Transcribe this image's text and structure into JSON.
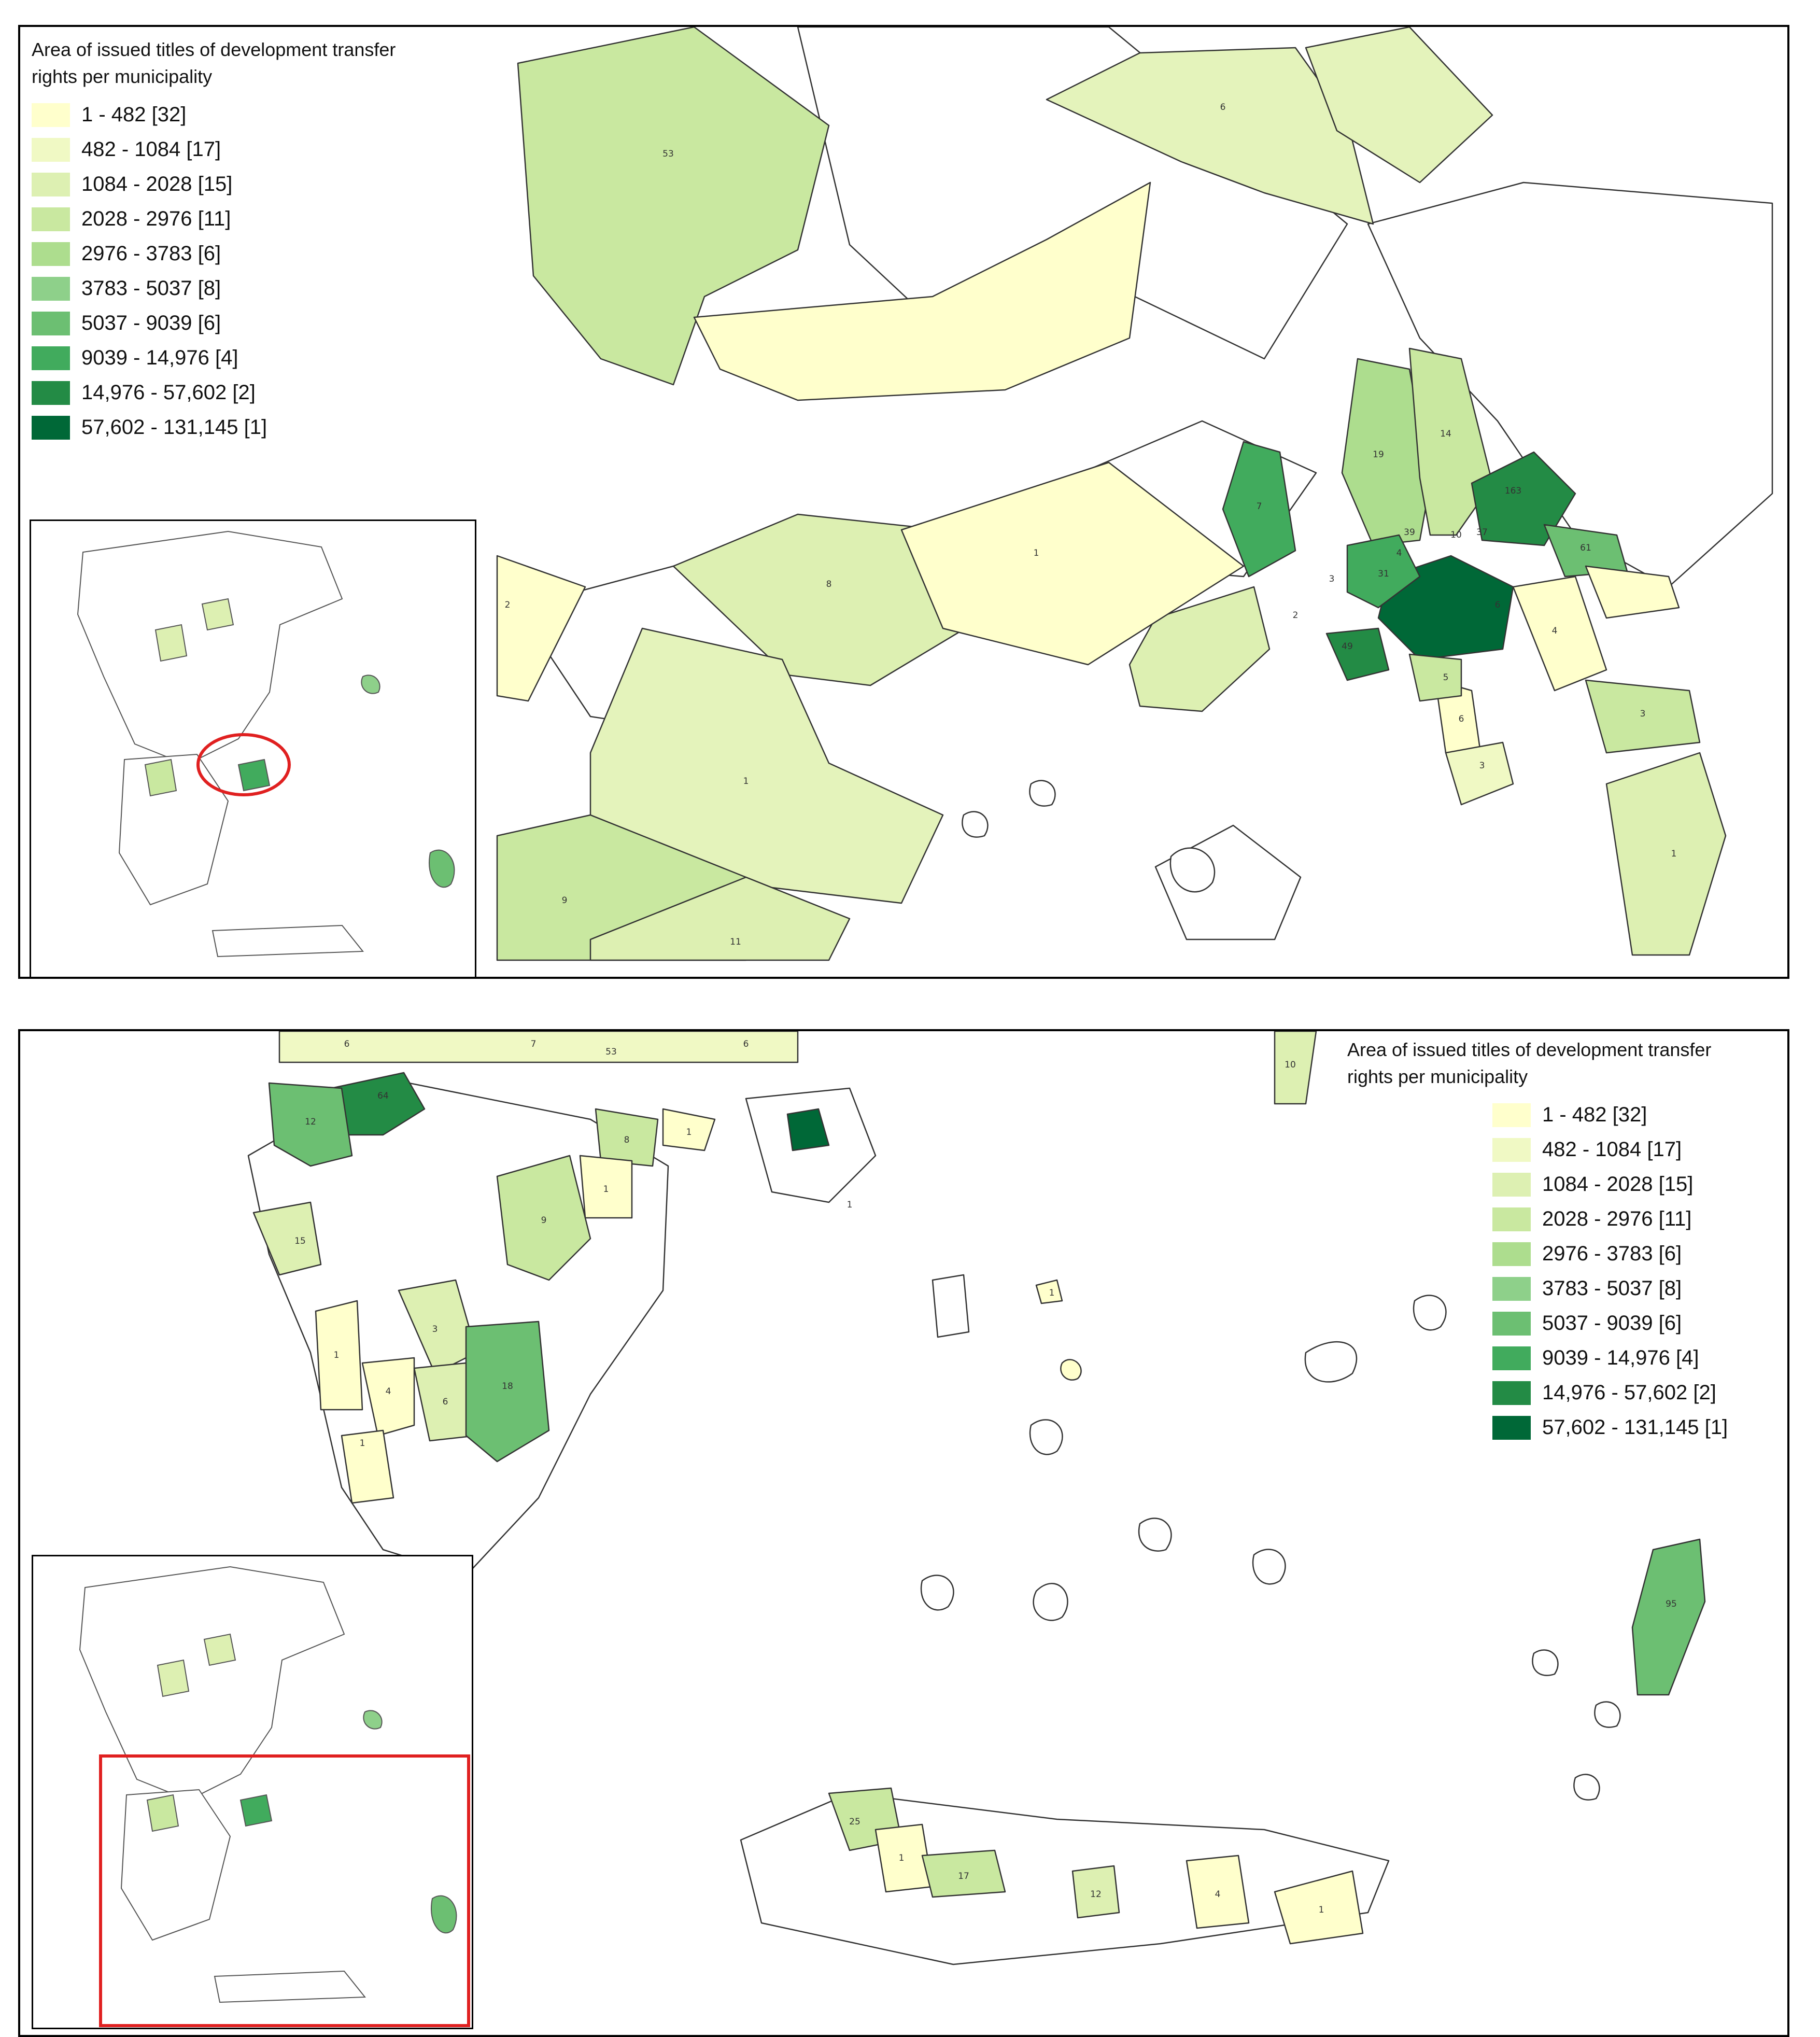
{
  "legend": {
    "title_line1": "Area of issued titles of development transfer",
    "title_line2": "rights per municipality",
    "classes": [
      {
        "label": "1 - 482 [32]",
        "color": "#ffffcc"
      },
      {
        "label": "482 - 1084 [17]",
        "color": "#f0f9c4"
      },
      {
        "label": "1084 - 2028 [15]",
        "color": "#ddf0b2"
      },
      {
        "label": "2028 - 2976 [11]",
        "color": "#c9e8a0"
      },
      {
        "label": "2976 - 3783 [6]",
        "color": "#addd8e"
      },
      {
        "label": "3783 - 5037 [8]",
        "color": "#8ed08a"
      },
      {
        "label": "5037 - 9039 [6]",
        "color": "#6cbf72"
      },
      {
        "label": "9039 - 14,976 [4]",
        "color": "#41ab5d"
      },
      {
        "label": "14,976 - 57,602 [2]",
        "color": "#238b45"
      },
      {
        "label": "57,602 - 131,145 [1]",
        "color": "#006837"
      }
    ]
  },
  "top_map": {
    "labels": [
      "53",
      "6",
      "7",
      "19",
      "14",
      "163",
      "61",
      "39",
      "37",
      "10",
      "4",
      "31",
      "2",
      "3",
      "6",
      "4",
      "49",
      "5",
      "6",
      "3",
      "3",
      "1",
      "8",
      "1",
      "2",
      "1",
      "9",
      "11"
    ]
  },
  "bottom_map": {
    "labels": [
      "6",
      "7",
      "53",
      "6",
      "10",
      "64",
      "12",
      "8",
      "1",
      "15",
      "9",
      "1",
      "3",
      "1",
      "1",
      "4",
      "6",
      "18",
      "1",
      "25",
      "1",
      "17",
      "12",
      "4",
      "1",
      "95",
      "1"
    ]
  },
  "colors": {
    "inset_highlight": "#e02020",
    "outline": "#333333",
    "no_data": "#ffffff"
  }
}
